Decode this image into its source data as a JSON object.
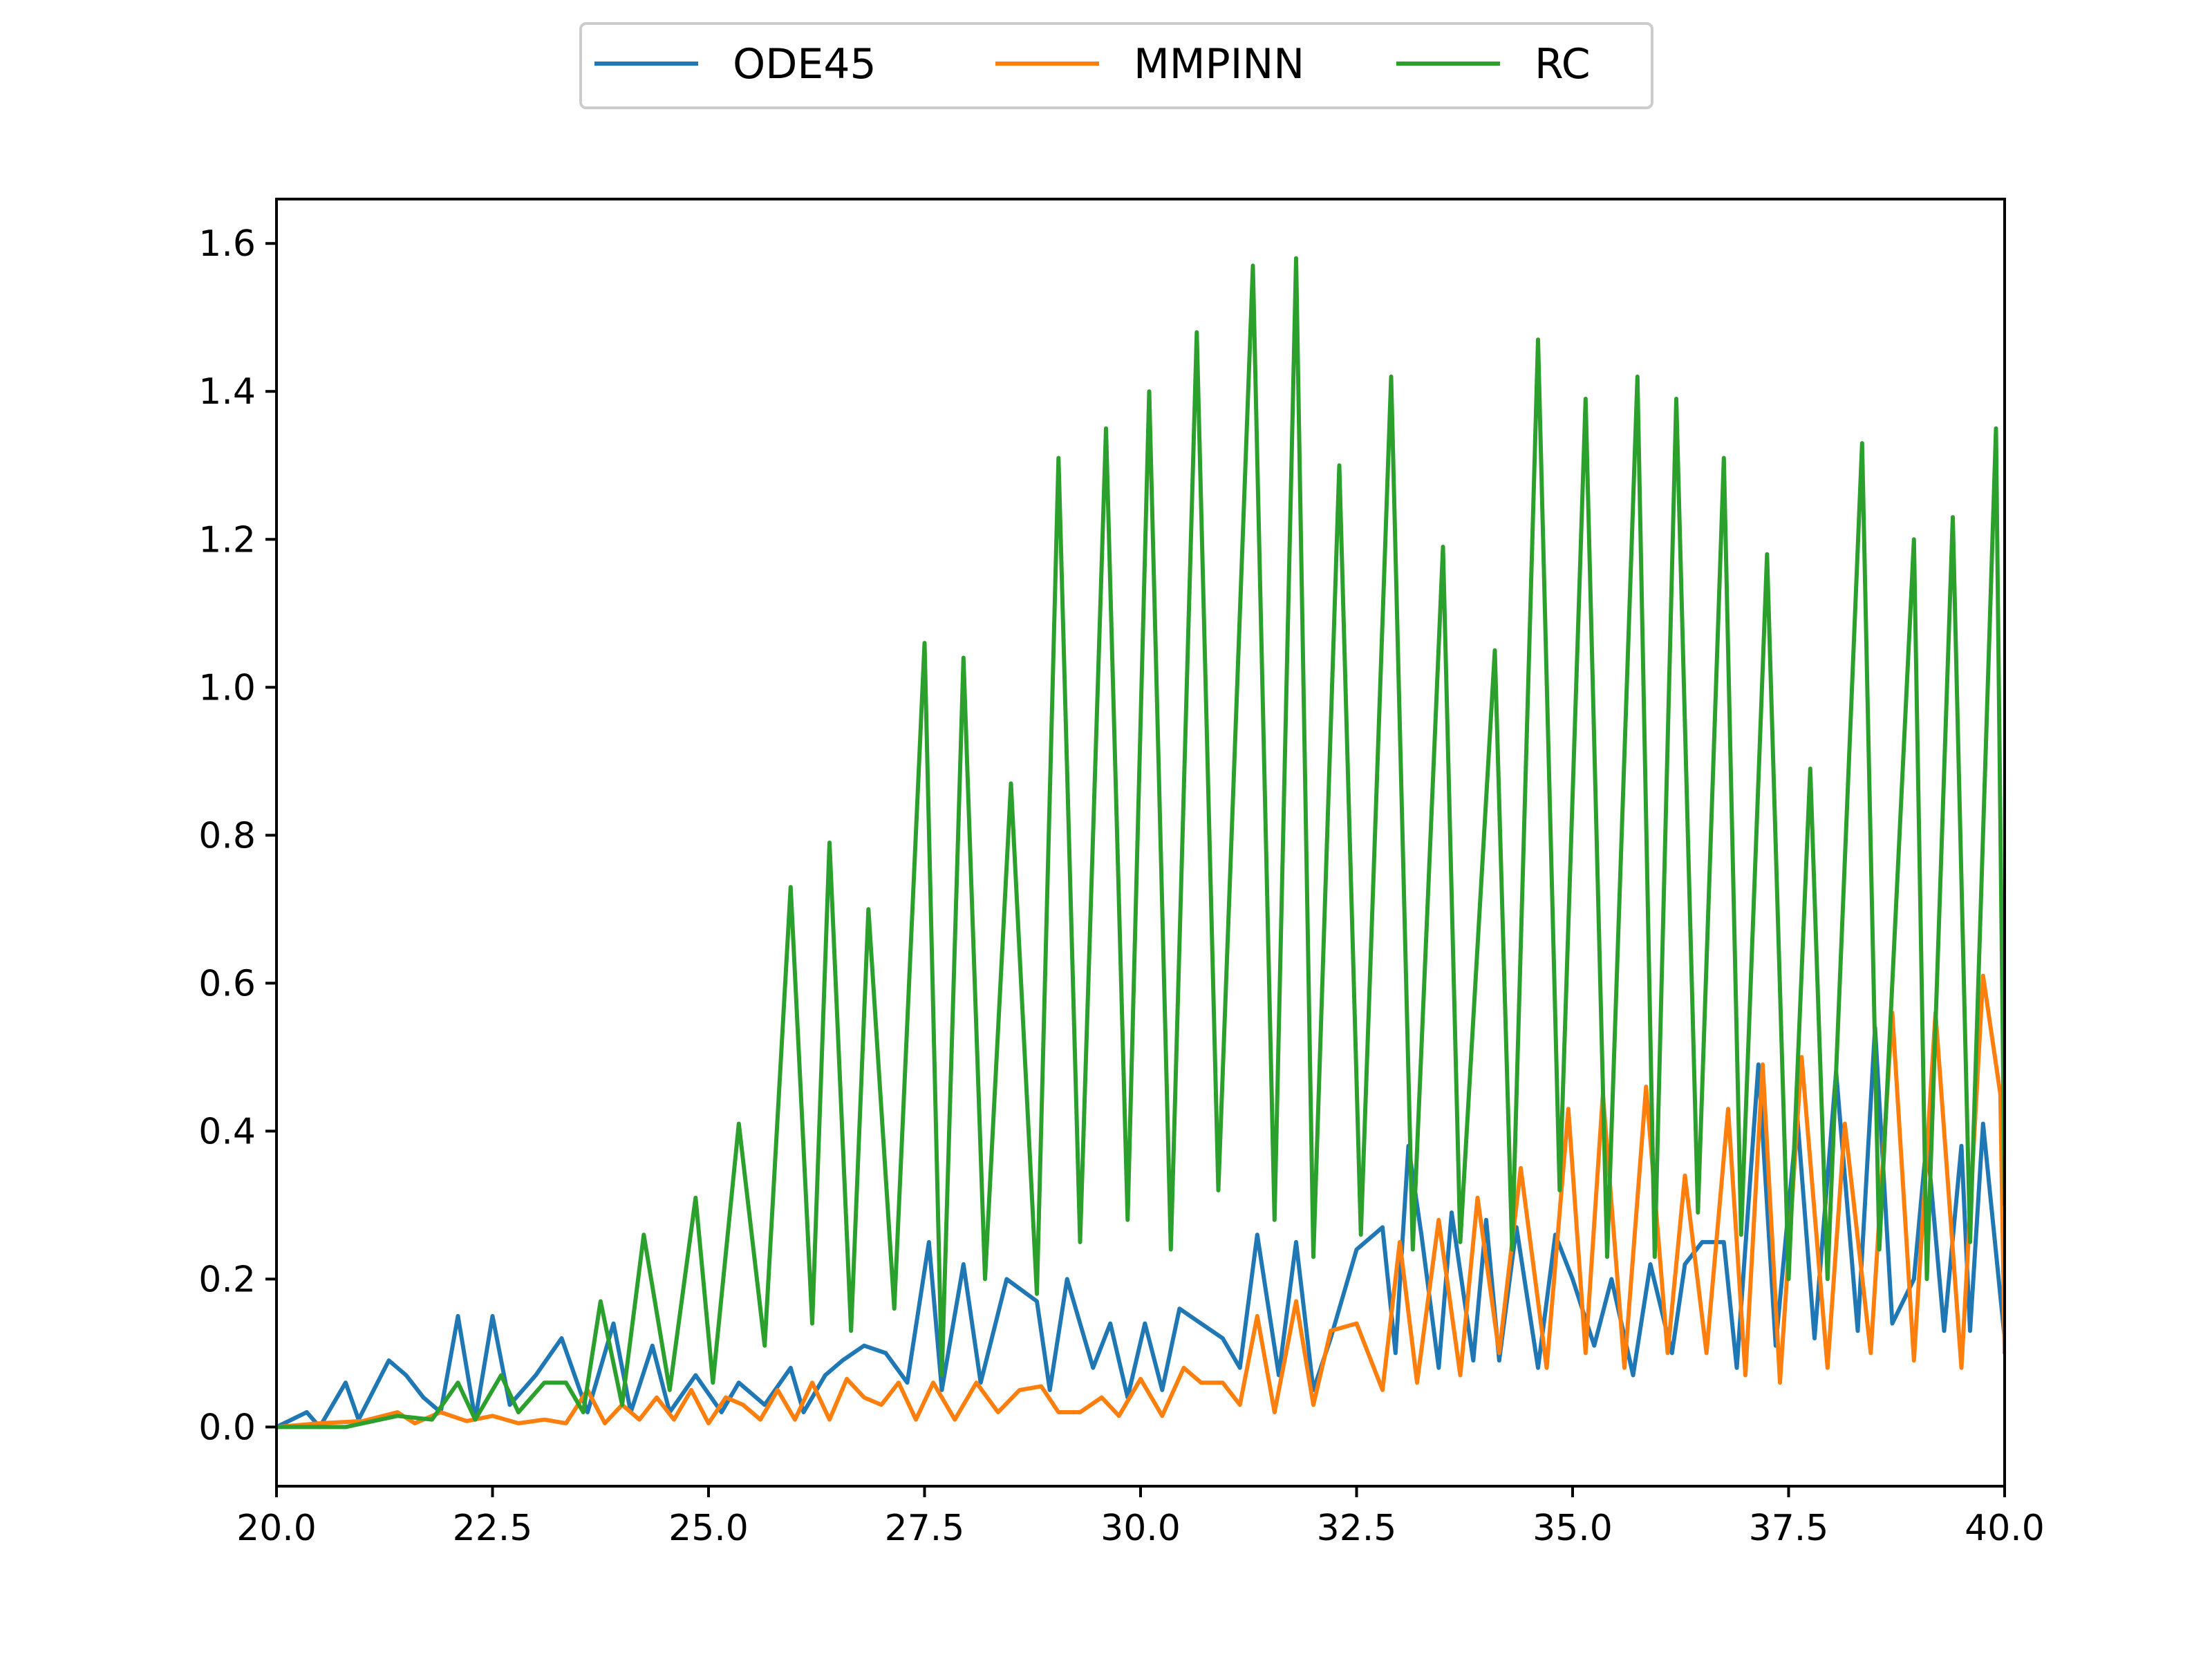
{
  "chart_data": {
    "type": "line",
    "title": "",
    "xlabel": "",
    "ylabel": "",
    "xlim": [
      20.0,
      40.0
    ],
    "ylim": [
      -0.08,
      1.66
    ],
    "grid": false,
    "legend_position": "top-center",
    "x_ticks": [
      "20.0",
      "22.5",
      "25.0",
      "27.5",
      "30.0",
      "32.5",
      "35.0",
      "37.5",
      "40.0"
    ],
    "y_ticks": [
      "0.0",
      "0.2",
      "0.4",
      "0.6",
      "0.8",
      "1.0",
      "1.2",
      "1.4",
      "1.6"
    ],
    "series": [
      {
        "name": "ODE45",
        "color": "#1f77b4",
        "x": [
          20.0,
          20.35,
          20.5,
          20.8,
          20.95,
          21.3,
          21.5,
          21.7,
          21.9,
          22.1,
          22.3,
          22.5,
          22.7,
          23.0,
          23.3,
          23.6,
          23.9,
          24.1,
          24.35,
          24.55,
          24.85,
          25.15,
          25.35,
          25.65,
          25.95,
          26.1,
          26.35,
          26.55,
          26.8,
          27.05,
          27.3,
          27.55,
          27.7,
          27.95,
          28.15,
          28.45,
          28.8,
          28.95,
          29.15,
          29.45,
          29.65,
          29.85,
          30.05,
          30.25,
          30.45,
          30.7,
          30.95,
          31.15,
          31.35,
          31.6,
          31.8,
          32.0,
          32.2,
          32.5,
          32.8,
          32.95,
          33.1,
          33.25,
          33.45,
          33.6,
          33.85,
          34.0,
          34.15,
          34.35,
          34.6,
          34.8,
          35.0,
          35.25,
          35.45,
          35.7,
          35.9,
          36.15,
          36.3,
          36.5,
          36.75,
          36.9,
          37.15,
          37.35,
          37.6,
          37.8,
          38.05,
          38.3,
          38.5,
          38.7,
          38.95,
          39.1,
          39.3,
          39.5,
          39.6,
          39.75,
          40.0
        ],
        "y": [
          0.0,
          0.02,
          0.0,
          0.06,
          0.01,
          0.09,
          0.07,
          0.04,
          0.02,
          0.15,
          0.01,
          0.15,
          0.03,
          0.07,
          0.12,
          0.02,
          0.14,
          0.02,
          0.11,
          0.02,
          0.07,
          0.02,
          0.06,
          0.03,
          0.08,
          0.02,
          0.07,
          0.09,
          0.11,
          0.1,
          0.06,
          0.25,
          0.05,
          0.22,
          0.06,
          0.2,
          0.17,
          0.05,
          0.2,
          0.08,
          0.14,
          0.04,
          0.14,
          0.05,
          0.16,
          0.14,
          0.12,
          0.08,
          0.26,
          0.07,
          0.25,
          0.05,
          0.12,
          0.24,
          0.27,
          0.1,
          0.38,
          0.26,
          0.08,
          0.29,
          0.09,
          0.28,
          0.09,
          0.27,
          0.08,
          0.26,
          0.2,
          0.11,
          0.2,
          0.07,
          0.22,
          0.1,
          0.22,
          0.25,
          0.25,
          0.08,
          0.49,
          0.11,
          0.42,
          0.12,
          0.48,
          0.13,
          0.54,
          0.14,
          0.2,
          0.39,
          0.13,
          0.38,
          0.13,
          0.41,
          0.12
        ]
      },
      {
        "name": "MMPINN",
        "color": "#ff7f0e",
        "x": [
          20.0,
          20.5,
          21.0,
          21.4,
          21.6,
          21.9,
          22.2,
          22.5,
          22.8,
          23.1,
          23.35,
          23.6,
          23.8,
          24.0,
          24.2,
          24.4,
          24.6,
          24.8,
          25.0,
          25.2,
          25.4,
          25.6,
          25.8,
          26.0,
          26.2,
          26.4,
          26.6,
          26.8,
          27.0,
          27.2,
          27.4,
          27.6,
          27.85,
          28.1,
          28.35,
          28.6,
          28.85,
          29.05,
          29.3,
          29.55,
          29.75,
          30.0,
          30.25,
          30.5,
          30.7,
          30.95,
          31.15,
          31.35,
          31.55,
          31.8,
          32.0,
          32.2,
          32.5,
          32.8,
          33.0,
          33.2,
          33.45,
          33.7,
          33.9,
          34.15,
          34.4,
          34.7,
          34.95,
          35.15,
          35.35,
          35.6,
          35.85,
          36.1,
          36.3,
          36.55,
          36.8,
          37.0,
          37.2,
          37.4,
          37.65,
          37.95,
          38.15,
          38.45,
          38.7,
          38.95,
          39.2,
          39.5,
          39.75,
          39.95,
          40.0
        ],
        "y": [
          0.0,
          0.005,
          0.008,
          0.02,
          0.005,
          0.02,
          0.008,
          0.015,
          0.005,
          0.01,
          0.005,
          0.05,
          0.005,
          0.03,
          0.01,
          0.04,
          0.01,
          0.05,
          0.005,
          0.04,
          0.03,
          0.01,
          0.05,
          0.01,
          0.06,
          0.01,
          0.065,
          0.04,
          0.03,
          0.06,
          0.01,
          0.06,
          0.01,
          0.06,
          0.02,
          0.05,
          0.055,
          0.02,
          0.02,
          0.04,
          0.015,
          0.065,
          0.015,
          0.08,
          0.06,
          0.06,
          0.03,
          0.15,
          0.02,
          0.17,
          0.03,
          0.13,
          0.14,
          0.05,
          0.25,
          0.06,
          0.28,
          0.07,
          0.31,
          0.1,
          0.35,
          0.08,
          0.43,
          0.1,
          0.45,
          0.08,
          0.46,
          0.1,
          0.34,
          0.1,
          0.43,
          0.07,
          0.49,
          0.06,
          0.5,
          0.08,
          0.41,
          0.1,
          0.56,
          0.09,
          0.56,
          0.08,
          0.61,
          0.45,
          0.1
        ]
      },
      {
        "name": "RC",
        "color": "#2ca02c",
        "x": [
          20.0,
          20.8,
          21.4,
          21.8,
          22.1,
          22.3,
          22.6,
          22.8,
          23.1,
          23.35,
          23.55,
          23.75,
          24.0,
          24.25,
          24.55,
          24.85,
          25.05,
          25.35,
          25.65,
          25.95,
          26.2,
          26.4,
          26.65,
          26.85,
          27.15,
          27.5,
          27.7,
          27.95,
          28.2,
          28.5,
          28.8,
          29.05,
          29.3,
          29.6,
          29.85,
          30.1,
          30.35,
          30.65,
          30.9,
          31.3,
          31.55,
          31.8,
          32.0,
          32.3,
          32.55,
          32.9,
          33.15,
          33.5,
          33.7,
          34.1,
          34.3,
          34.6,
          34.85,
          35.15,
          35.4,
          35.75,
          35.95,
          36.2,
          36.45,
          36.75,
          36.95,
          37.25,
          37.5,
          37.75,
          37.95,
          38.35,
          38.55,
          38.95,
          39.1,
          39.4,
          39.6,
          39.9,
          40.0
        ],
        "y": [
          0.0,
          0.0,
          0.015,
          0.01,
          0.06,
          0.01,
          0.07,
          0.02,
          0.06,
          0.06,
          0.02,
          0.17,
          0.03,
          0.26,
          0.05,
          0.31,
          0.06,
          0.41,
          0.11,
          0.73,
          0.14,
          0.79,
          0.13,
          0.7,
          0.16,
          1.06,
          0.07,
          1.04,
          0.2,
          0.87,
          0.18,
          1.31,
          0.25,
          1.35,
          0.28,
          1.4,
          0.24,
          1.48,
          0.32,
          1.57,
          0.28,
          1.58,
          0.23,
          1.3,
          0.26,
          1.42,
          0.24,
          1.19,
          0.25,
          1.05,
          0.24,
          1.47,
          0.32,
          1.39,
          0.23,
          1.42,
          0.23,
          1.39,
          0.29,
          1.31,
          0.26,
          1.18,
          0.2,
          0.89,
          0.2,
          1.33,
          0.24,
          1.2,
          0.2,
          1.23,
          0.25,
          1.35,
          0.3
        ]
      }
    ]
  }
}
